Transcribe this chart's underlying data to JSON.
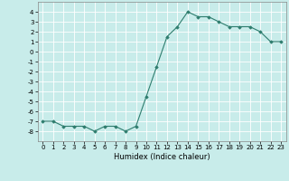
{
  "x": [
    0,
    1,
    2,
    3,
    4,
    5,
    6,
    7,
    8,
    9,
    10,
    11,
    12,
    13,
    14,
    15,
    16,
    17,
    18,
    19,
    20,
    21,
    22,
    23
  ],
  "y": [
    -7,
    -7,
    -7.5,
    -7.5,
    -7.5,
    -8,
    -7.5,
    -7.5,
    -8,
    -7.5,
    -4.5,
    -1.5,
    1.5,
    2.5,
    4,
    3.5,
    3.5,
    3,
    2.5,
    2.5,
    2.5,
    2,
    1,
    1
  ],
  "line_color": "#2e7d6e",
  "marker": "D",
  "marker_size": 1.8,
  "bg_color": "#c8ecea",
  "grid_color": "#ffffff",
  "xlabel": "Humidex (Indice chaleur)",
  "ylim": [
    -9,
    5
  ],
  "xlim": [
    -0.5,
    23.5
  ],
  "yticks": [
    -8,
    -7,
    -6,
    -5,
    -4,
    -3,
    -2,
    -1,
    0,
    1,
    2,
    3,
    4
  ],
  "xticks": [
    0,
    1,
    2,
    3,
    4,
    5,
    6,
    7,
    8,
    9,
    10,
    11,
    12,
    13,
    14,
    15,
    16,
    17,
    18,
    19,
    20,
    21,
    22,
    23
  ],
  "label_fontsize": 6,
  "tick_fontsize": 5
}
